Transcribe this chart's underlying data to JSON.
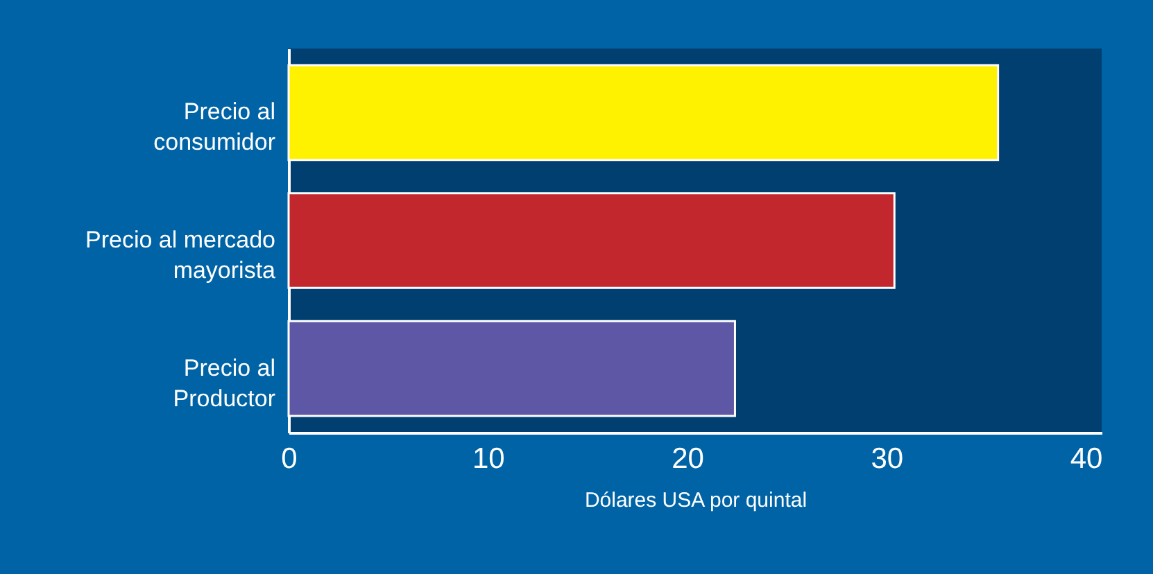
{
  "chart_data": {
    "type": "bar",
    "orientation": "horizontal",
    "xlabel": "Dólares USA por quintal",
    "categories": [
      "Precio al\nconsumidor",
      "Precio al mercado\nmayorista",
      "Precio al\nProductor"
    ],
    "values": [
      35.6,
      30.4,
      22.4
    ],
    "colors": [
      "#fff200",
      "#c1272d",
      "#5e57a6"
    ],
    "xlim": [
      0,
      40.8
    ],
    "xticks": [
      0,
      10,
      20,
      30,
      40
    ],
    "grid": false
  }
}
